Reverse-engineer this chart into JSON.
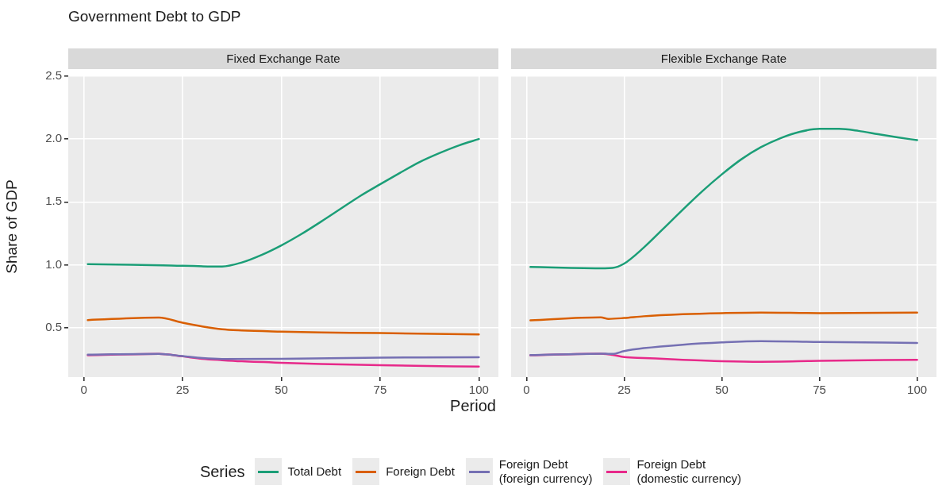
{
  "chart_data": [
    {
      "type": "line",
      "title": "Government Debt to GDP",
      "subtitle": "Fixed Exchange Rate",
      "xlabel": "Period",
      "ylabel": "Share of GDP",
      "legend_title": "Series",
      "legend": "bottom",
      "grid": true,
      "xlim": [
        -3.95,
        104.95
      ],
      "xticks": [
        0,
        25,
        50,
        75,
        100
      ],
      "ylim": [
        0.106,
        2.5
      ],
      "yticks": [
        0.5,
        {
          "value": 1,
          "label": "1.0"
        },
        1.5,
        {
          "value": 2,
          "label": "2.0"
        },
        2.5
      ],
      "series": [
        {
          "name": "Total Debt",
          "color": "#1b9e77",
          "x": [
            1,
            20,
            35,
            40,
            45,
            50,
            55,
            60,
            65,
            70,
            75,
            80,
            85,
            90,
            95,
            100
          ],
          "values": [
            1.005,
            0.995,
            0.986,
            1.018,
            1.078,
            1.154,
            1.243,
            1.342,
            1.445,
            1.548,
            1.64,
            1.73,
            1.817,
            1.888,
            1.95,
            2.0
          ]
        },
        {
          "name": "Foreign Debt",
          "color": "#d95f02",
          "x": [
            1,
            19,
            25,
            30,
            35,
            40,
            50,
            60,
            75,
            100
          ],
          "values": [
            0.56,
            0.58,
            0.539,
            0.509,
            0.486,
            0.477,
            0.468,
            0.461,
            0.456,
            0.445
          ]
        },
        {
          "name": "Foreign Debt\n(foreign currency)",
          "color": "#7570b3",
          "x": [
            1,
            19,
            25,
            30,
            35,
            50,
            75,
            100
          ],
          "values": [
            0.284,
            0.291,
            0.273,
            0.257,
            0.25,
            0.252,
            0.261,
            0.264
          ]
        },
        {
          "name": "Foreign Debt\n(domestic currency)",
          "color": "#e7298a",
          "x": [
            1,
            19,
            25,
            30,
            35,
            40,
            50,
            60,
            75,
            90,
            100
          ],
          "values": [
            0.28,
            0.291,
            0.271,
            0.252,
            0.241,
            0.232,
            0.22,
            0.211,
            0.2,
            0.193,
            0.19
          ]
        }
      ]
    },
    {
      "type": "line",
      "subtitle": "Flexible Exchange Rate",
      "grid": true,
      "tick_labels": "x",
      "xlim": [
        -3.95,
        104.95
      ],
      "xticks": [
        0,
        25,
        50,
        75,
        100
      ],
      "ylim": [
        0.106,
        2.5
      ],
      "yticks": [
        0.5,
        1,
        1.5,
        2,
        2.5
      ],
      "series": [
        {
          "color": "#1b9e77",
          "x": [
            1,
            20,
            22,
            25,
            30,
            35,
            40,
            45,
            50,
            55,
            60,
            65,
            70,
            75,
            80,
            85,
            90,
            95,
            100
          ],
          "values": [
            0.982,
            0.972,
            0.974,
            1.009,
            1.136,
            1.286,
            1.438,
            1.585,
            1.719,
            1.839,
            1.935,
            2.007,
            2.058,
            2.081,
            2.081,
            2.065,
            2.039,
            2.014,
            1.991
          ]
        },
        {
          "color": "#d95f02",
          "x": [
            1,
            19,
            21,
            25,
            30,
            40,
            50,
            60,
            75,
            100
          ],
          "values": [
            0.558,
            0.581,
            0.569,
            0.576,
            0.59,
            0.606,
            0.615,
            0.62,
            0.615,
            0.62
          ]
        },
        {
          "color": "#7570b3",
          "x": [
            1,
            20,
            22,
            25,
            30,
            40,
            50,
            60,
            75,
            100
          ],
          "values": [
            0.281,
            0.293,
            0.29,
            0.313,
            0.336,
            0.364,
            0.382,
            0.392,
            0.385,
            0.378
          ]
        },
        {
          "color": "#e7298a",
          "x": [
            1,
            19,
            22,
            25,
            30,
            40,
            50,
            60,
            75,
            100
          ],
          "values": [
            0.279,
            0.293,
            0.283,
            0.265,
            0.258,
            0.244,
            0.233,
            0.228,
            0.235,
            0.244
          ]
        }
      ]
    }
  ]
}
